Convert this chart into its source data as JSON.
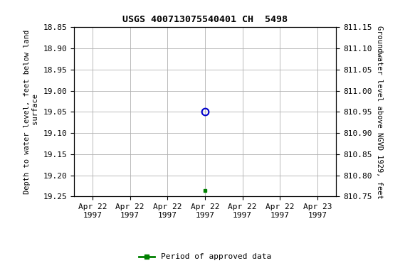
{
  "title": "USGS 400713075540401 CH  5498",
  "ylabel_left": "Depth to water level, feet below land\n surface",
  "ylabel_right": "Groundwater level above NGVD 1929, feet",
  "ylim_left": [
    18.85,
    19.25
  ],
  "ylim_right": [
    810.75,
    811.15
  ],
  "yticks_left": [
    18.85,
    18.9,
    18.95,
    19.0,
    19.05,
    19.1,
    19.15,
    19.2,
    19.25
  ],
  "yticks_right": [
    811.15,
    811.1,
    811.05,
    811.0,
    810.95,
    810.9,
    810.85,
    810.8,
    810.75
  ],
  "xtick_labels": [
    "Apr 22\n1997",
    "Apr 22\n1997",
    "Apr 22\n1997",
    "Apr 22\n1997",
    "Apr 22\n1997",
    "Apr 22\n1997",
    "Apr 23\n1997"
  ],
  "xtick_positions": [
    0,
    1,
    2,
    3,
    4,
    5,
    6
  ],
  "xlim": [
    -0.5,
    6.5
  ],
  "point_blue_x": 3.0,
  "point_blue_y": 19.05,
  "point_green_x": 3.0,
  "point_green_y": 19.235,
  "blue_color": "#0000cc",
  "green_color": "#008000",
  "background_color": "#ffffff",
  "grid_color": "#b0b0b0",
  "legend_label": "Period of approved data",
  "font_family": "monospace",
  "title_fontsize": 9.5,
  "tick_fontsize": 8,
  "label_fontsize": 7.5
}
